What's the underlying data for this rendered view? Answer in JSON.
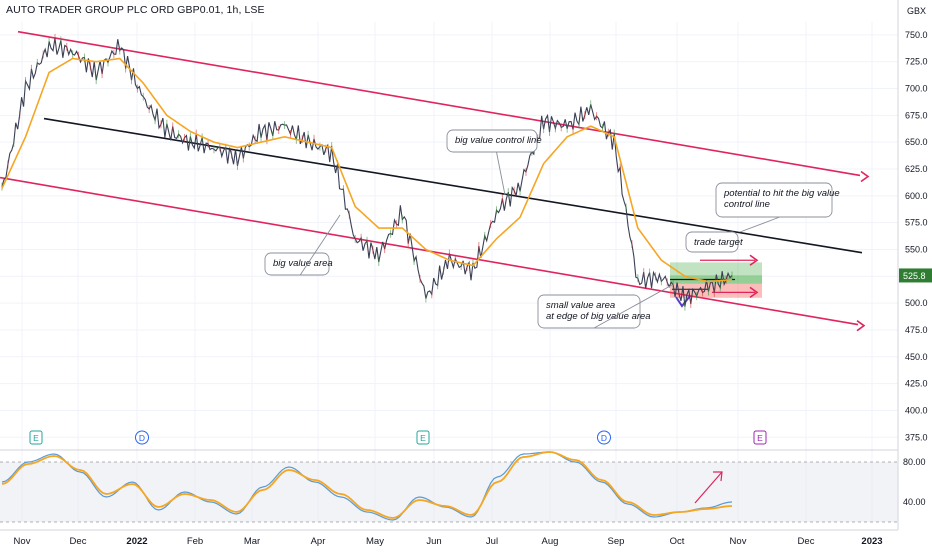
{
  "header": {
    "symbol_title": "AUTO TRADER GROUP PLC ORD GBP0.01, 1h, LSE",
    "currency": "GBX"
  },
  "price_axis": {
    "ticks": [
      "750.0",
      "725.0",
      "700.0",
      "675.0",
      "650.0",
      "625.0",
      "600.0",
      "575.0",
      "550.0",
      "525.0",
      "500.0",
      "475.0",
      "450.0",
      "425.0",
      "400.0",
      "375.0"
    ],
    "last_price": "525.8"
  },
  "oscillator_axis": {
    "ticks": [
      "80.00",
      "40.00"
    ]
  },
  "time_axis": {
    "labels": [
      "Nov",
      "Dec",
      "2022",
      "Feb",
      "Mar",
      "Apr",
      "May",
      "Jun",
      "Jul",
      "Aug",
      "Sep",
      "Oct",
      "Nov",
      "Dec",
      "2023"
    ]
  },
  "event_markers": [
    "E",
    "D",
    "E",
    "D",
    "E"
  ],
  "annotations": {
    "big_value_control_line": "big value control line",
    "big_value_area": "big value area",
    "small_value_area_line1": "small value area",
    "small_value_area_line2": "at edge of big value area",
    "trade_target": "trade target",
    "potential_line1": "potential to hit the big value",
    "potential_line2": "control line"
  },
  "colors": {
    "price_line": "#3a3f55",
    "moving_average": "#f5a623",
    "channel": "#e0245e",
    "control_line": "#131722",
    "target_zone": "#4caf50",
    "stop_zone": "#f44336",
    "osc_k": "#5b9bd5",
    "osc_d": "#f5a623",
    "last_price_badge": "#2e7d32"
  },
  "chart_data": {
    "type": "line",
    "ylim": [
      365,
      762
    ],
    "x": [
      "Nov",
      "Nov",
      "Dec",
      "Dec",
      "Dec",
      "2022",
      "2022",
      "Feb",
      "Feb",
      "Mar",
      "Mar",
      "Mar",
      "Apr",
      "Apr",
      "May",
      "May",
      "May",
      "Jun",
      "Jun",
      "Jun",
      "Jul",
      "Jul",
      "Jul",
      "Aug",
      "Aug",
      "Sep",
      "Sep",
      "Sep",
      "Oct",
      "Oct",
      "Oct",
      "Oct"
    ],
    "series": [
      {
        "values": [
          605,
          700,
          740,
          735,
          715,
          740,
          690,
          660,
          650,
          645,
          635,
          660,
          665,
          650,
          640,
          560,
          545,
          585,
          505,
          540,
          530,
          585,
          610,
          670,
          665,
          680,
          650,
          520,
          525,
          505,
          515,
          525.8
        ]
      },
      {
        "values": [
          607,
          655,
          715,
          728,
          725,
          728,
          705,
          675,
          660,
          650,
          645,
          650,
          655,
          650,
          645,
          590,
          570,
          570,
          550,
          540,
          535,
          560,
          580,
          630,
          655,
          665,
          655,
          570,
          540,
          525,
          520,
          522
        ]
      }
    ],
    "oscillator": {
      "ylim": [
        20,
        90
      ],
      "series": [
        {
          "values": [
            60,
            80,
            88,
            70,
            45,
            60,
            32,
            50,
            40,
            28,
            55,
            75,
            60,
            45,
            30,
            22,
            45,
            35,
            25,
            65,
            88,
            90,
            80,
            60,
            38,
            25,
            30,
            34,
            40
          ]
        },
        {
          "values": [
            58,
            78,
            86,
            72,
            48,
            58,
            35,
            48,
            42,
            30,
            52,
            72,
            62,
            48,
            32,
            24,
            42,
            36,
            27,
            60,
            85,
            90,
            82,
            62,
            40,
            27,
            30,
            33,
            36
          ]
        }
      ]
    }
  }
}
